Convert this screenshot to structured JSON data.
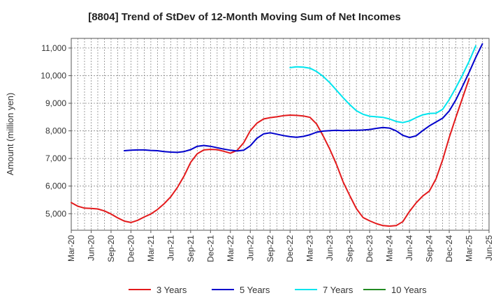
{
  "chart_data": {
    "type": "line",
    "title": "[8804]  Trend of StDev of 12-Month Moving Sum of Net Incomes",
    "xlabel": "",
    "ylabel": "Amount (million yen)",
    "ylim": [
      4400,
      11350
    ],
    "yticks": [
      5000,
      6000,
      7000,
      8000,
      9000,
      10000,
      11000
    ],
    "ytick_labels": [
      "5,000",
      "6,000",
      "7,000",
      "8,000",
      "9,000",
      "10,000",
      "11,000"
    ],
    "x_start": "Mar-20",
    "x_end": "Jun-25",
    "x_ticks": [
      "Mar-20",
      "Jun-20",
      "Sep-20",
      "Dec-20",
      "Mar-21",
      "Jun-21",
      "Sep-21",
      "Dec-21",
      "Mar-22",
      "Jun-22",
      "Sep-22",
      "Dec-22",
      "Mar-23",
      "Jun-23",
      "Sep-23",
      "Dec-23",
      "Mar-24",
      "Jun-24",
      "Sep-24",
      "Dec-24",
      "Mar-25",
      "Jun-25"
    ],
    "grid": true,
    "legend_position": "bottom",
    "series": [
      {
        "name": "3 Years",
        "color": "#e31a1c",
        "start": "Mar-20",
        "values": [
          5400,
          5270,
          5200,
          5190,
          5170,
          5100,
          4990,
          4850,
          4730,
          4680,
          4760,
          4880,
          4990,
          5150,
          5360,
          5610,
          5950,
          6360,
          6860,
          7170,
          7310,
          7330,
          7320,
          7260,
          7190,
          7290,
          7570,
          8010,
          8280,
          8430,
          8480,
          8510,
          8550,
          8570,
          8560,
          8540,
          8490,
          8250,
          7810,
          7330,
          6780,
          6150,
          5650,
          5180,
          4860,
          4740,
          4640,
          4570,
          4550,
          4570,
          4710,
          5080,
          5390,
          5640,
          5820,
          6260,
          6950,
          7760,
          8490,
          9190,
          9890
        ]
      },
      {
        "name": "5 Years",
        "color": "#0000cc",
        "start": "Nov-20",
        "values": [
          7280,
          7300,
          7310,
          7310,
          7290,
          7280,
          7250,
          7230,
          7220,
          7250,
          7320,
          7440,
          7470,
          7440,
          7390,
          7340,
          7300,
          7270,
          7300,
          7460,
          7730,
          7890,
          7930,
          7880,
          7830,
          7790,
          7770,
          7800,
          7860,
          7950,
          7990,
          8010,
          8020,
          8010,
          8020,
          8020,
          8030,
          8050,
          8090,
          8120,
          8100,
          8000,
          7840,
          7760,
          7820,
          8010,
          8180,
          8320,
          8460,
          8720,
          9120,
          9610,
          10120,
          10660,
          11150
        ]
      },
      {
        "name": "7 Years",
        "color": "#00e5ee",
        "start": "Dec-22",
        "values": [
          10290,
          10320,
          10310,
          10270,
          10150,
          9970,
          9740,
          9470,
          9200,
          8950,
          8730,
          8600,
          8530,
          8510,
          8490,
          8430,
          8340,
          8300,
          8360,
          8480,
          8580,
          8630,
          8640,
          8780,
          9130,
          9560,
          10020,
          10520,
          11080
        ]
      },
      {
        "name": "10 Years",
        "color": "#228b22",
        "start": "Mar-25",
        "values": []
      }
    ]
  }
}
